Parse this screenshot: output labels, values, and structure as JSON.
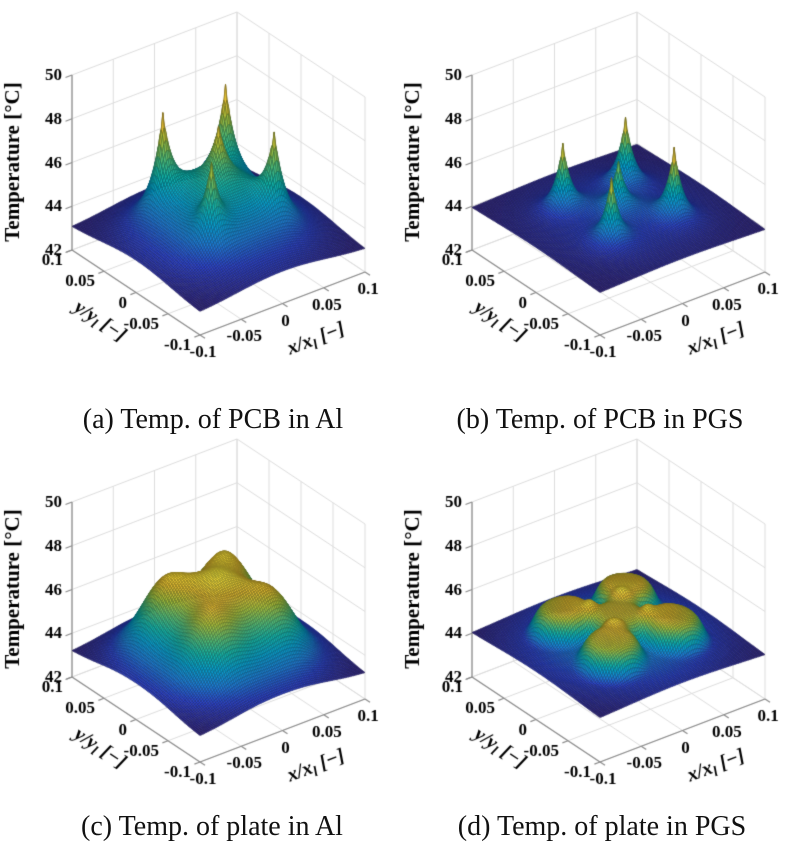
{
  "figure": {
    "background": "#ffffff",
    "description": "2x2 grid of 3D surface plots of temperature distribution over a normalized plate area"
  },
  "colormap": {
    "name": "parula",
    "stops": [
      [
        0.0,
        "#352a87"
      ],
      [
        0.13,
        "#2c43cb"
      ],
      [
        0.25,
        "#1c7ed8"
      ],
      [
        0.38,
        "#06a0cd"
      ],
      [
        0.5,
        "#12b3a8"
      ],
      [
        0.62,
        "#51bc77"
      ],
      [
        0.75,
        "#a6be3c"
      ],
      [
        0.87,
        "#e0b932"
      ],
      [
        1.0,
        "#f9e63c"
      ]
    ]
  },
  "axes_style": {
    "grid_color": "#dcdcdc",
    "axis_color": "#8a8a8a",
    "tick_text_color": "#000000",
    "mesh_edge_darken": 0.58
  },
  "chart_data": [
    {
      "id": "a",
      "type": "surface3d",
      "caption": "(a) Temp. of PCB in Al",
      "zlabel": "Temperature [°C]",
      "xlabel": "x/x_l [−]",
      "ylabel": "y/y_l [−]",
      "zlim": [
        42,
        50
      ],
      "xlim": [
        -0.1,
        0.1
      ],
      "ylim": [
        -0.1,
        0.1
      ],
      "zticks": [
        "42",
        "44",
        "46",
        "48",
        "50"
      ],
      "xticks": [
        "-0.1",
        "-0.05",
        "0",
        "0.05",
        "0.1"
      ],
      "yticks": [
        "0.1",
        "0.05",
        "0",
        "-0.05",
        "-0.1"
      ],
      "surface": {
        "base_temp": 43.0,
        "dome": {
          "amp": 2.8,
          "sigma": 0.075
        },
        "peak_shape": "cusp",
        "peak_width": 0.01,
        "peaks": [
          {
            "x": -0.038,
            "y": 0.038,
            "amp": 3.9
          },
          {
            "x": 0.038,
            "y": 0.038,
            "amp": 4.1
          },
          {
            "x": -0.038,
            "y": -0.038,
            "amp": 3.1
          },
          {
            "x": 0.038,
            "y": -0.038,
            "amp": 3.4
          },
          {
            "x": 0.0,
            "y": 0.0,
            "amp": 2.3
          }
        ],
        "approx_min": 43.0,
        "approx_max": 48.9
      }
    },
    {
      "id": "b",
      "type": "surface3d",
      "caption": "(b) Temp. of PCB in PGS",
      "zlabel": "Temperature [°C]",
      "xlabel": "x/x_l [−]",
      "ylabel": "y/y_l [−]",
      "zlim": [
        42,
        50
      ],
      "xlim": [
        -0.1,
        0.1
      ],
      "ylim": [
        -0.1,
        0.1
      ],
      "zticks": [
        "42",
        "44",
        "46",
        "48",
        "50"
      ],
      "xticks": [
        "-0.1",
        "-0.05",
        "0",
        "0.05",
        "0.1"
      ],
      "yticks": [
        "0.1",
        "0.05",
        "0",
        "-0.05",
        "-0.1"
      ],
      "surface": {
        "base_temp": 43.9,
        "dome": {
          "amp": 0.55,
          "sigma": 0.09
        },
        "peak_shape": "cusp",
        "peak_width": 0.0085,
        "peaks": [
          {
            "x": -0.038,
            "y": 0.038,
            "amp": 2.9
          },
          {
            "x": 0.038,
            "y": 0.038,
            "amp": 3.0
          },
          {
            "x": -0.038,
            "y": -0.038,
            "amp": 2.8
          },
          {
            "x": 0.038,
            "y": -0.038,
            "amp": 3.1
          },
          {
            "x": 0.0,
            "y": 0.0,
            "amp": 2.1
          }
        ],
        "approx_min": 43.9,
        "approx_max": 47.6
      }
    },
    {
      "id": "c",
      "type": "surface3d",
      "caption": "(c) Temp. of plate in Al",
      "zlabel": "Temperature [°C]",
      "xlabel": "x/x_l [−]",
      "ylabel": "y/y_l [−]",
      "zlim": [
        42,
        50
      ],
      "xlim": [
        -0.1,
        0.1
      ],
      "ylim": [
        -0.1,
        0.1
      ],
      "zticks": [
        "42",
        "44",
        "46",
        "48",
        "50"
      ],
      "xticks": [
        "-0.1",
        "-0.05",
        "0",
        "0.05",
        "0.1"
      ],
      "yticks": [
        "0.1",
        "0.05",
        "0",
        "-0.05",
        "-0.1"
      ],
      "surface": {
        "base_temp": 43.1,
        "dome": {
          "amp": 2.9,
          "sigma": 0.078
        },
        "peak_shape": "gauss",
        "peak_width": 0.03,
        "peaks": [
          {
            "x": -0.038,
            "y": 0.038,
            "amp": 1.9
          },
          {
            "x": 0.038,
            "y": 0.038,
            "amp": 2.0
          },
          {
            "x": -0.038,
            "y": -0.038,
            "amp": 1.6
          },
          {
            "x": 0.038,
            "y": -0.038,
            "amp": 1.7
          },
          {
            "x": 0.0,
            "y": 0.0,
            "amp": 1.0
          }
        ],
        "approx_min": 43.1,
        "approx_max": 47.0
      }
    },
    {
      "id": "d",
      "type": "surface3d",
      "caption": "(d) Temp. of plate in PGS",
      "zlabel": "Temperature [°C]",
      "xlabel": "x/x_l [−]",
      "ylabel": "y/y_l [−]",
      "zlim": [
        42,
        50
      ],
      "xlim": [
        -0.1,
        0.1
      ],
      "ylim": [
        -0.1,
        0.1
      ],
      "zticks": [
        "42",
        "44",
        "46",
        "48",
        "50"
      ],
      "xticks": [
        "-0.1",
        "-0.05",
        "0",
        "0.05",
        "0.1"
      ],
      "yticks": [
        "0.1",
        "0.05",
        "0",
        "-0.05",
        "-0.1"
      ],
      "surface": {
        "base_temp": 43.95,
        "dome": {
          "amp": 0.75,
          "sigma": 0.095
        },
        "peak_shape": "plateau",
        "peak_width": 0.03,
        "peaks": [
          {
            "x": -0.038,
            "y": 0.038,
            "amp": 1.15
          },
          {
            "x": 0.038,
            "y": 0.038,
            "amp": 1.2
          },
          {
            "x": -0.038,
            "y": -0.038,
            "amp": 1.1
          },
          {
            "x": 0.038,
            "y": -0.038,
            "amp": 1.15
          },
          {
            "x": 0.0,
            "y": 0.0,
            "amp": 0.9
          }
        ],
        "approx_min": 44.0,
        "approx_max": 45.9
      }
    }
  ]
}
